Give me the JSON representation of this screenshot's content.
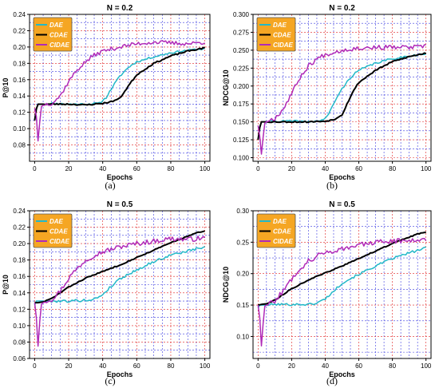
{
  "chart_data": [
    {
      "type": "line",
      "panel_label": "(a)",
      "title": "N = 0.2",
      "xlabel": "Epochs",
      "ylabel": "P@10",
      "xlim": [
        -3,
        103
      ],
      "ylim": [
        0.06,
        0.24
      ],
      "xticks": [
        0,
        20,
        40,
        60,
        80,
        100
      ],
      "xtick_labels": [
        "0",
        "20",
        "40",
        "60",
        "80",
        "100"
      ],
      "yticks": [
        0.08,
        0.1,
        0.12,
        0.14,
        0.16,
        0.18,
        0.2,
        0.22,
        0.24
      ],
      "ytick_labels": [
        "0.08",
        "0.10",
        "0.12",
        "0.14",
        "0.16",
        "0.18",
        "0.20",
        "0.22",
        "0.24"
      ],
      "grid": true,
      "legend": "top-left",
      "series": [
        {
          "name": "DAE",
          "color": "#22b8c8",
          "width": 1.5,
          "x": [
            0,
            1,
            2,
            5,
            10,
            20,
            30,
            38,
            42,
            46,
            50,
            55,
            60,
            70,
            80,
            90,
            100
          ],
          "y": [
            0.11,
            0.124,
            0.13,
            0.13,
            0.131,
            0.13,
            0.13,
            0.131,
            0.138,
            0.152,
            0.164,
            0.175,
            0.182,
            0.188,
            0.193,
            0.196,
            0.198
          ],
          "noise": 0.0012,
          "seed": 11
        },
        {
          "name": "CDAE",
          "color": "#000000",
          "width": 2,
          "x": [
            0,
            1,
            2,
            5,
            10,
            20,
            30,
            40,
            45,
            50,
            53,
            56,
            60,
            70,
            80,
            90,
            100
          ],
          "y": [
            0.11,
            0.124,
            0.13,
            0.13,
            0.13,
            0.13,
            0.129,
            0.131,
            0.133,
            0.137,
            0.146,
            0.155,
            0.166,
            0.18,
            0.189,
            0.195,
            0.199
          ],
          "noise": 0.0008,
          "seed": 23
        },
        {
          "name": "CIDAE",
          "color": "#b02ab8",
          "width": 1.5,
          "x": [
            0,
            1,
            2,
            3,
            4,
            6,
            10,
            15,
            20,
            25,
            30,
            35,
            40,
            50,
            60,
            70,
            80,
            90,
            100
          ],
          "y": [
            0.125,
            0.115,
            0.085,
            0.108,
            0.127,
            0.13,
            0.131,
            0.14,
            0.158,
            0.172,
            0.182,
            0.19,
            0.195,
            0.2,
            0.204,
            0.206,
            0.205,
            0.204,
            0.206
          ],
          "noise": 0.0025,
          "seed": 37
        }
      ]
    },
    {
      "type": "line",
      "panel_label": "(b)",
      "title": "N = 0.2",
      "xlabel": "Epochs",
      "ylabel": "NDCG@10",
      "xlim": [
        -3,
        103
      ],
      "ylim": [
        0.095,
        0.3
      ],
      "xticks": [
        0,
        20,
        40,
        60,
        80,
        100
      ],
      "xtick_labels": [
        "0",
        "20",
        "40",
        "60",
        "80",
        "100"
      ],
      "yticks": [
        0.1,
        0.125,
        0.15,
        0.175,
        0.2,
        0.225,
        0.25,
        0.275,
        0.3
      ],
      "ytick_labels": [
        "0.100",
        "0.125",
        "0.150",
        "0.175",
        "0.200",
        "0.225",
        "0.250",
        "0.275",
        "0.300"
      ],
      "grid": true,
      "legend": "top-left",
      "series": [
        {
          "name": "DAE",
          "color": "#22b8c8",
          "width": 1.5,
          "x": [
            0,
            1,
            2,
            5,
            10,
            20,
            30,
            38,
            42,
            46,
            50,
            55,
            60,
            70,
            80,
            90,
            100
          ],
          "y": [
            0.125,
            0.142,
            0.15,
            0.15,
            0.151,
            0.151,
            0.15,
            0.152,
            0.16,
            0.18,
            0.196,
            0.212,
            0.222,
            0.232,
            0.238,
            0.242,
            0.245
          ],
          "noise": 0.0015,
          "seed": 41
        },
        {
          "name": "CDAE",
          "color": "#000000",
          "width": 2,
          "x": [
            0,
            1,
            2,
            5,
            10,
            20,
            30,
            40,
            45,
            50,
            53,
            56,
            60,
            70,
            80,
            90,
            100
          ],
          "y": [
            0.125,
            0.142,
            0.15,
            0.15,
            0.15,
            0.15,
            0.15,
            0.151,
            0.153,
            0.16,
            0.175,
            0.19,
            0.205,
            0.222,
            0.234,
            0.241,
            0.246
          ],
          "noise": 0.0009,
          "seed": 53
        },
        {
          "name": "CIDAE",
          "color": "#b02ab8",
          "width": 1.5,
          "x": [
            0,
            1,
            2,
            3,
            4,
            6,
            10,
            15,
            20,
            25,
            30,
            35,
            40,
            50,
            60,
            70,
            80,
            90,
            100
          ],
          "y": [
            0.145,
            0.13,
            0.105,
            0.128,
            0.148,
            0.152,
            0.155,
            0.168,
            0.19,
            0.212,
            0.228,
            0.238,
            0.244,
            0.25,
            0.253,
            0.254,
            0.254,
            0.254,
            0.255
          ],
          "noise": 0.003,
          "seed": 67
        }
      ]
    },
    {
      "type": "line",
      "panel_label": "(c)",
      "title": "N = 0.5",
      "xlabel": "Epochs",
      "ylabel": "P@10",
      "xlim": [
        -3,
        103
      ],
      "ylim": [
        0.06,
        0.24
      ],
      "xticks": [
        0,
        20,
        40,
        60,
        80,
        100
      ],
      "xtick_labels": [
        "0",
        "20",
        "40",
        "60",
        "80",
        "100"
      ],
      "yticks": [
        0.06,
        0.08,
        0.1,
        0.12,
        0.14,
        0.16,
        0.18,
        0.2,
        0.22,
        0.24
      ],
      "ytick_labels": [
        "0.06",
        "0.08",
        "0.10",
        "0.12",
        "0.14",
        "0.16",
        "0.18",
        "0.20",
        "0.22",
        "0.24"
      ],
      "grid": true,
      "legend": "top-left",
      "series": [
        {
          "name": "DAE",
          "color": "#22b8c8",
          "width": 1.5,
          "x": [
            0,
            1,
            2,
            5,
            10,
            20,
            30,
            35,
            40,
            45,
            50,
            60,
            70,
            80,
            90,
            100
          ],
          "y": [
            0.125,
            0.13,
            0.13,
            0.13,
            0.13,
            0.13,
            0.131,
            0.132,
            0.138,
            0.148,
            0.157,
            0.168,
            0.178,
            0.186,
            0.191,
            0.196
          ],
          "noise": 0.0015,
          "seed": 79
        },
        {
          "name": "CDAE",
          "color": "#000000",
          "width": 2,
          "x": [
            0,
            2,
            5,
            10,
            15,
            20,
            30,
            40,
            50,
            60,
            70,
            80,
            90,
            95,
            100
          ],
          "y": [
            0.128,
            0.128,
            0.129,
            0.133,
            0.14,
            0.147,
            0.158,
            0.166,
            0.174,
            0.183,
            0.192,
            0.201,
            0.209,
            0.213,
            0.215
          ],
          "noise": 0.0006,
          "seed": 83
        },
        {
          "name": "CIDAE",
          "color": "#b02ab8",
          "width": 1.5,
          "x": [
            0,
            1,
            2,
            3,
            4,
            6,
            10,
            15,
            20,
            25,
            30,
            35,
            40,
            50,
            60,
            70,
            80,
            90,
            100
          ],
          "y": [
            0.128,
            0.11,
            0.075,
            0.105,
            0.126,
            0.13,
            0.132,
            0.142,
            0.158,
            0.17,
            0.18,
            0.186,
            0.19,
            0.196,
            0.2,
            0.203,
            0.206,
            0.205,
            0.207
          ],
          "noise": 0.003,
          "seed": 97
        }
      ]
    },
    {
      "type": "line",
      "panel_label": "(d)",
      "title": "N = 0.5",
      "xlabel": "Epochs",
      "ylabel": "NDCG@10",
      "xlim": [
        -3,
        103
      ],
      "ylim": [
        0.065,
        0.3
      ],
      "xticks": [
        0,
        20,
        40,
        60,
        80,
        100
      ],
      "xtick_labels": [
        "0",
        "20",
        "40",
        "60",
        "80",
        "100"
      ],
      "yticks": [
        0.1,
        0.15,
        0.2,
        0.25,
        0.3
      ],
      "ytick_labels": [
        "0.10",
        "0.15",
        "0.20",
        "0.25",
        "0.30"
      ],
      "grid": true,
      "legend": "top-left",
      "series": [
        {
          "name": "DAE",
          "color": "#22b8c8",
          "width": 1.5,
          "x": [
            0,
            1,
            2,
            5,
            10,
            20,
            30,
            35,
            40,
            45,
            50,
            60,
            70,
            80,
            90,
            100
          ],
          "y": [
            0.145,
            0.15,
            0.15,
            0.15,
            0.151,
            0.151,
            0.151,
            0.153,
            0.16,
            0.172,
            0.185,
            0.199,
            0.212,
            0.224,
            0.233,
            0.241
          ],
          "noise": 0.0018,
          "seed": 101
        },
        {
          "name": "CDAE",
          "color": "#000000",
          "width": 2,
          "x": [
            0,
            2,
            5,
            10,
            15,
            20,
            30,
            40,
            50,
            60,
            70,
            80,
            90,
            95,
            100
          ],
          "y": [
            0.15,
            0.151,
            0.152,
            0.158,
            0.167,
            0.176,
            0.19,
            0.201,
            0.212,
            0.224,
            0.236,
            0.248,
            0.258,
            0.263,
            0.266
          ],
          "noise": 0.0007,
          "seed": 113
        },
        {
          "name": "CIDAE",
          "color": "#b02ab8",
          "width": 1.5,
          "x": [
            0,
            1,
            2,
            3,
            4,
            6,
            10,
            15,
            20,
            25,
            30,
            35,
            40,
            50,
            60,
            70,
            80,
            90,
            100
          ],
          "y": [
            0.15,
            0.13,
            0.085,
            0.12,
            0.148,
            0.152,
            0.157,
            0.172,
            0.192,
            0.208,
            0.22,
            0.228,
            0.233,
            0.24,
            0.245,
            0.25,
            0.252,
            0.253,
            0.255
          ],
          "noise": 0.004,
          "seed": 127
        }
      ]
    }
  ]
}
